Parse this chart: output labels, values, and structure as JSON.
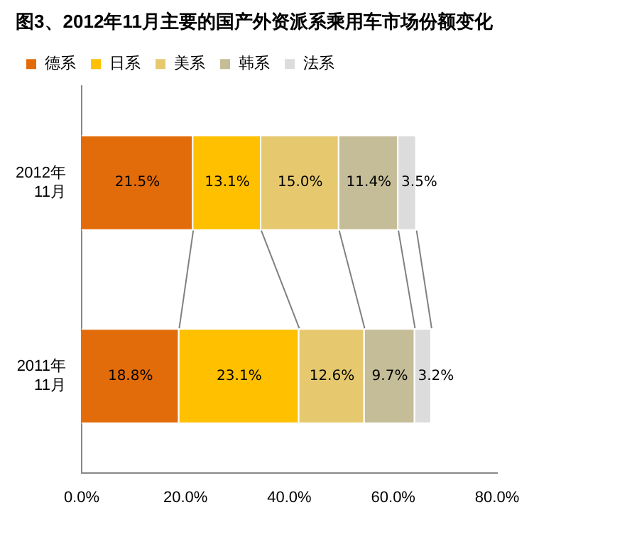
{
  "chart_data": {
    "type": "bar",
    "orientation": "horizontal",
    "stacked": true,
    "title": "图3、2012年11月主要的国产外资派系乘用车市场份额变化",
    "categories": [
      "2012年\n11月",
      "2011年\n11月"
    ],
    "series": [
      {
        "name": "德系",
        "color": "#e36c0a",
        "values": [
          21.5,
          18.8
        ],
        "value_labels": [
          "21.5%",
          "18.8%"
        ]
      },
      {
        "name": "日系",
        "color": "#ffc000",
        "values": [
          13.1,
          23.1
        ],
        "value_labels": [
          "13.1%",
          "23.1%"
        ]
      },
      {
        "name": "美系",
        "color": "#e6c96e",
        "values": [
          15.0,
          12.6
        ],
        "value_labels": [
          "15.0%",
          "12.6%"
        ]
      },
      {
        "name": "韩系",
        "color": "#c4bd97",
        "values": [
          11.4,
          9.7
        ],
        "value_labels": [
          "11.4%",
          "9.7%"
        ]
      },
      {
        "name": "法系",
        "color": "#dcdcdc",
        "values": [
          3.5,
          3.2
        ],
        "value_labels": [
          "3.5%",
          "3.2%"
        ]
      }
    ],
    "xlim": [
      0,
      80
    ],
    "xticks": [
      {
        "value": 0,
        "label": "0.0%"
      },
      {
        "value": 20,
        "label": "20.0%"
      },
      {
        "value": 40,
        "label": "40.0%"
      },
      {
        "value": 60,
        "label": "60.0%"
      },
      {
        "value": 80,
        "label": "80.0%"
      }
    ],
    "grid": false,
    "legend": "top"
  }
}
